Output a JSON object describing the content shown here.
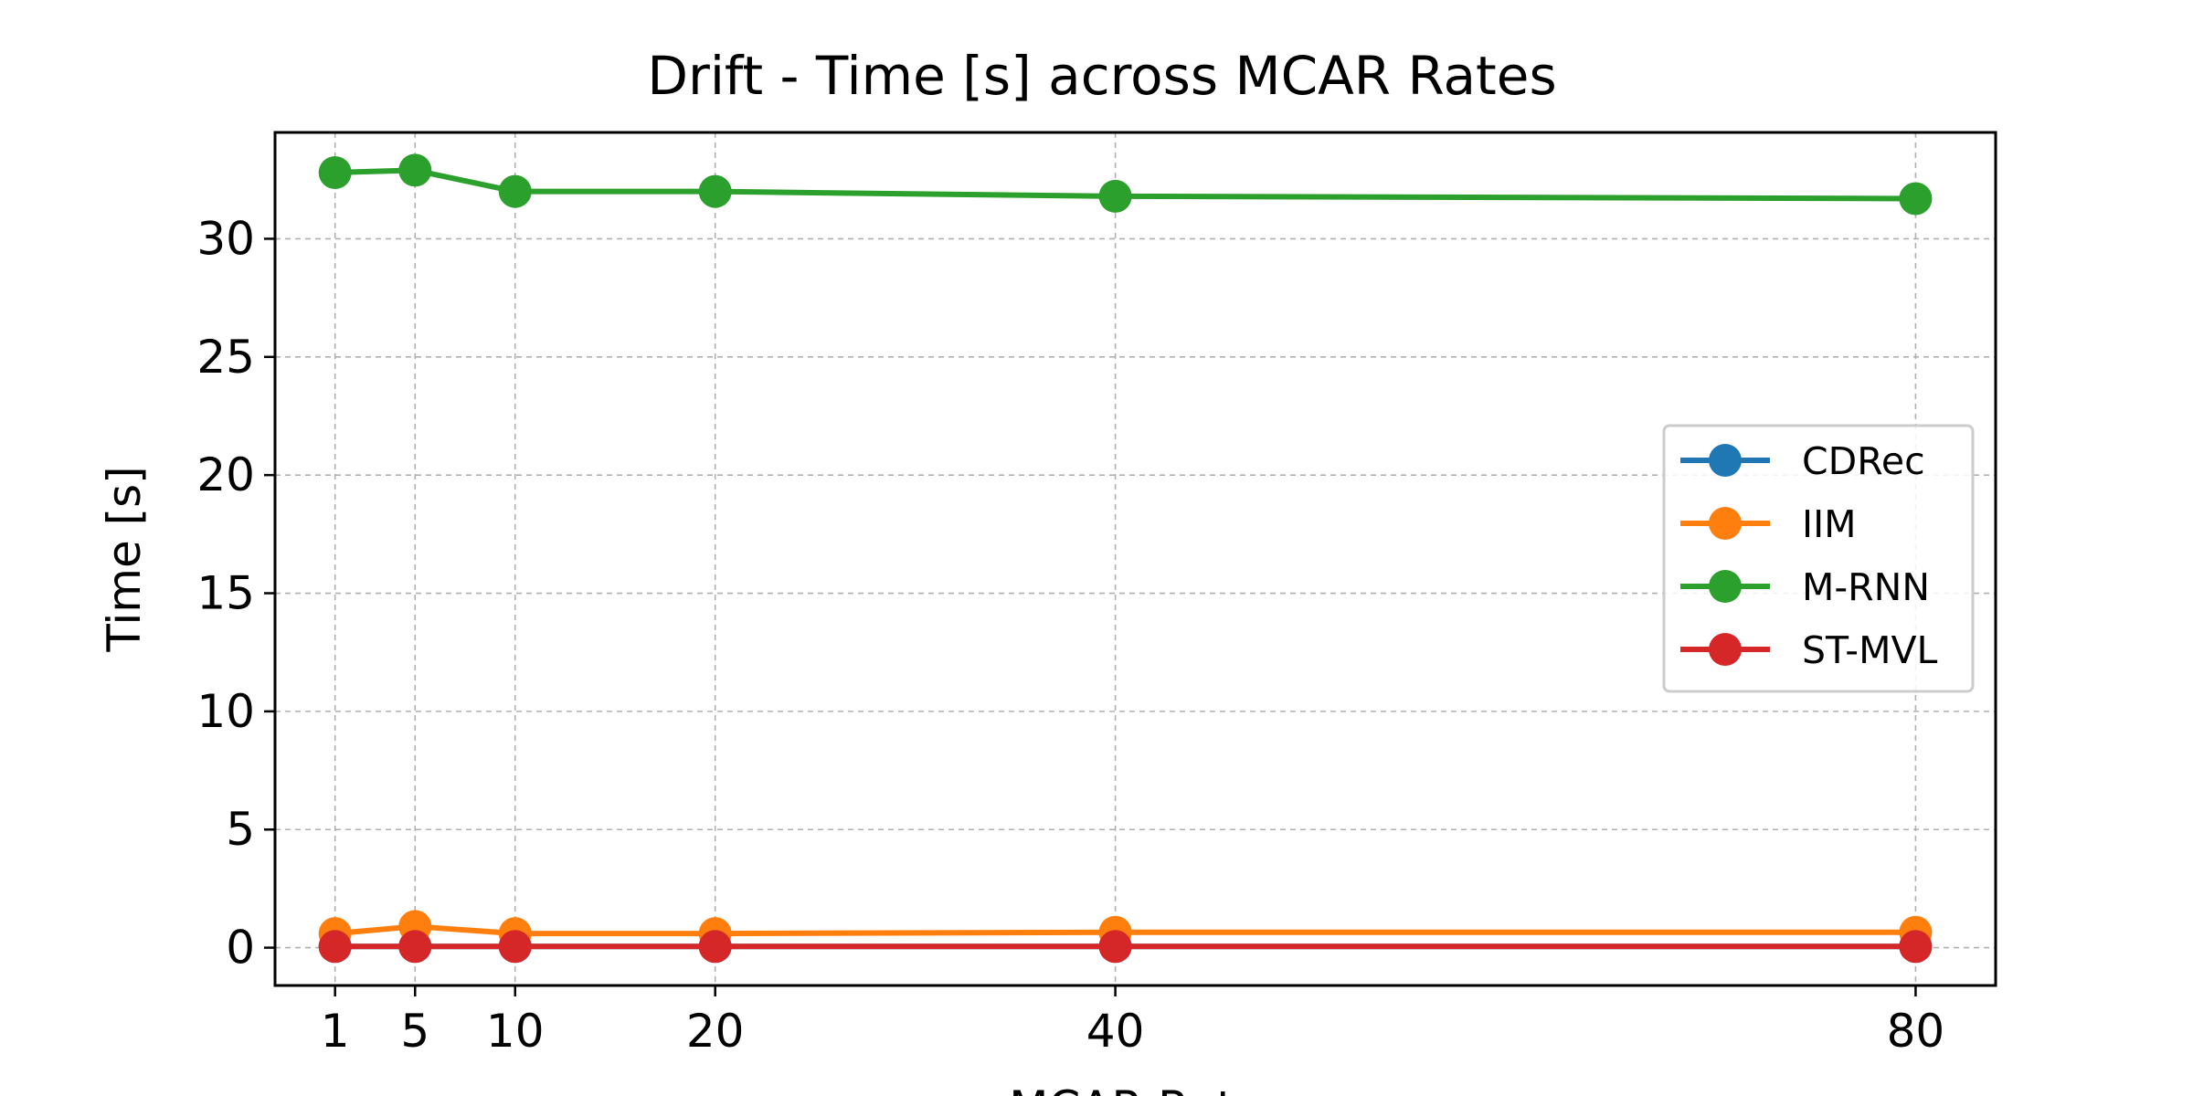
{
  "chart_data": {
    "type": "line",
    "title": "Drift - Time [s] across MCAR Rates",
    "xlabel": "MCAR Rate",
    "ylabel": "Time [s]",
    "x": [
      1,
      5,
      10,
      20,
      40,
      80
    ],
    "xticks": [
      1,
      5,
      10,
      20,
      40,
      80
    ],
    "xlim": [
      -2,
      84
    ],
    "yticks": [
      0,
      5,
      10,
      15,
      20,
      25,
      30
    ],
    "ylim": [
      -1.6,
      34.5
    ],
    "grid": true,
    "legend_position": "center-right",
    "series": [
      {
        "name": "CDRec",
        "color": "#1f77b4",
        "values": [
          0.05,
          0.05,
          0.05,
          0.05,
          0.05,
          0.05
        ]
      },
      {
        "name": "IIM",
        "color": "#ff7f0e",
        "values": [
          0.6,
          0.9,
          0.6,
          0.6,
          0.65,
          0.65
        ]
      },
      {
        "name": "M-RNN",
        "color": "#2ca02c",
        "values": [
          32.8,
          32.9,
          32.0,
          32.0,
          31.8,
          31.7
        ]
      },
      {
        "name": "ST-MVL",
        "color": "#d62728",
        "values": [
          0.05,
          0.05,
          0.05,
          0.05,
          0.05,
          0.05
        ]
      }
    ]
  }
}
